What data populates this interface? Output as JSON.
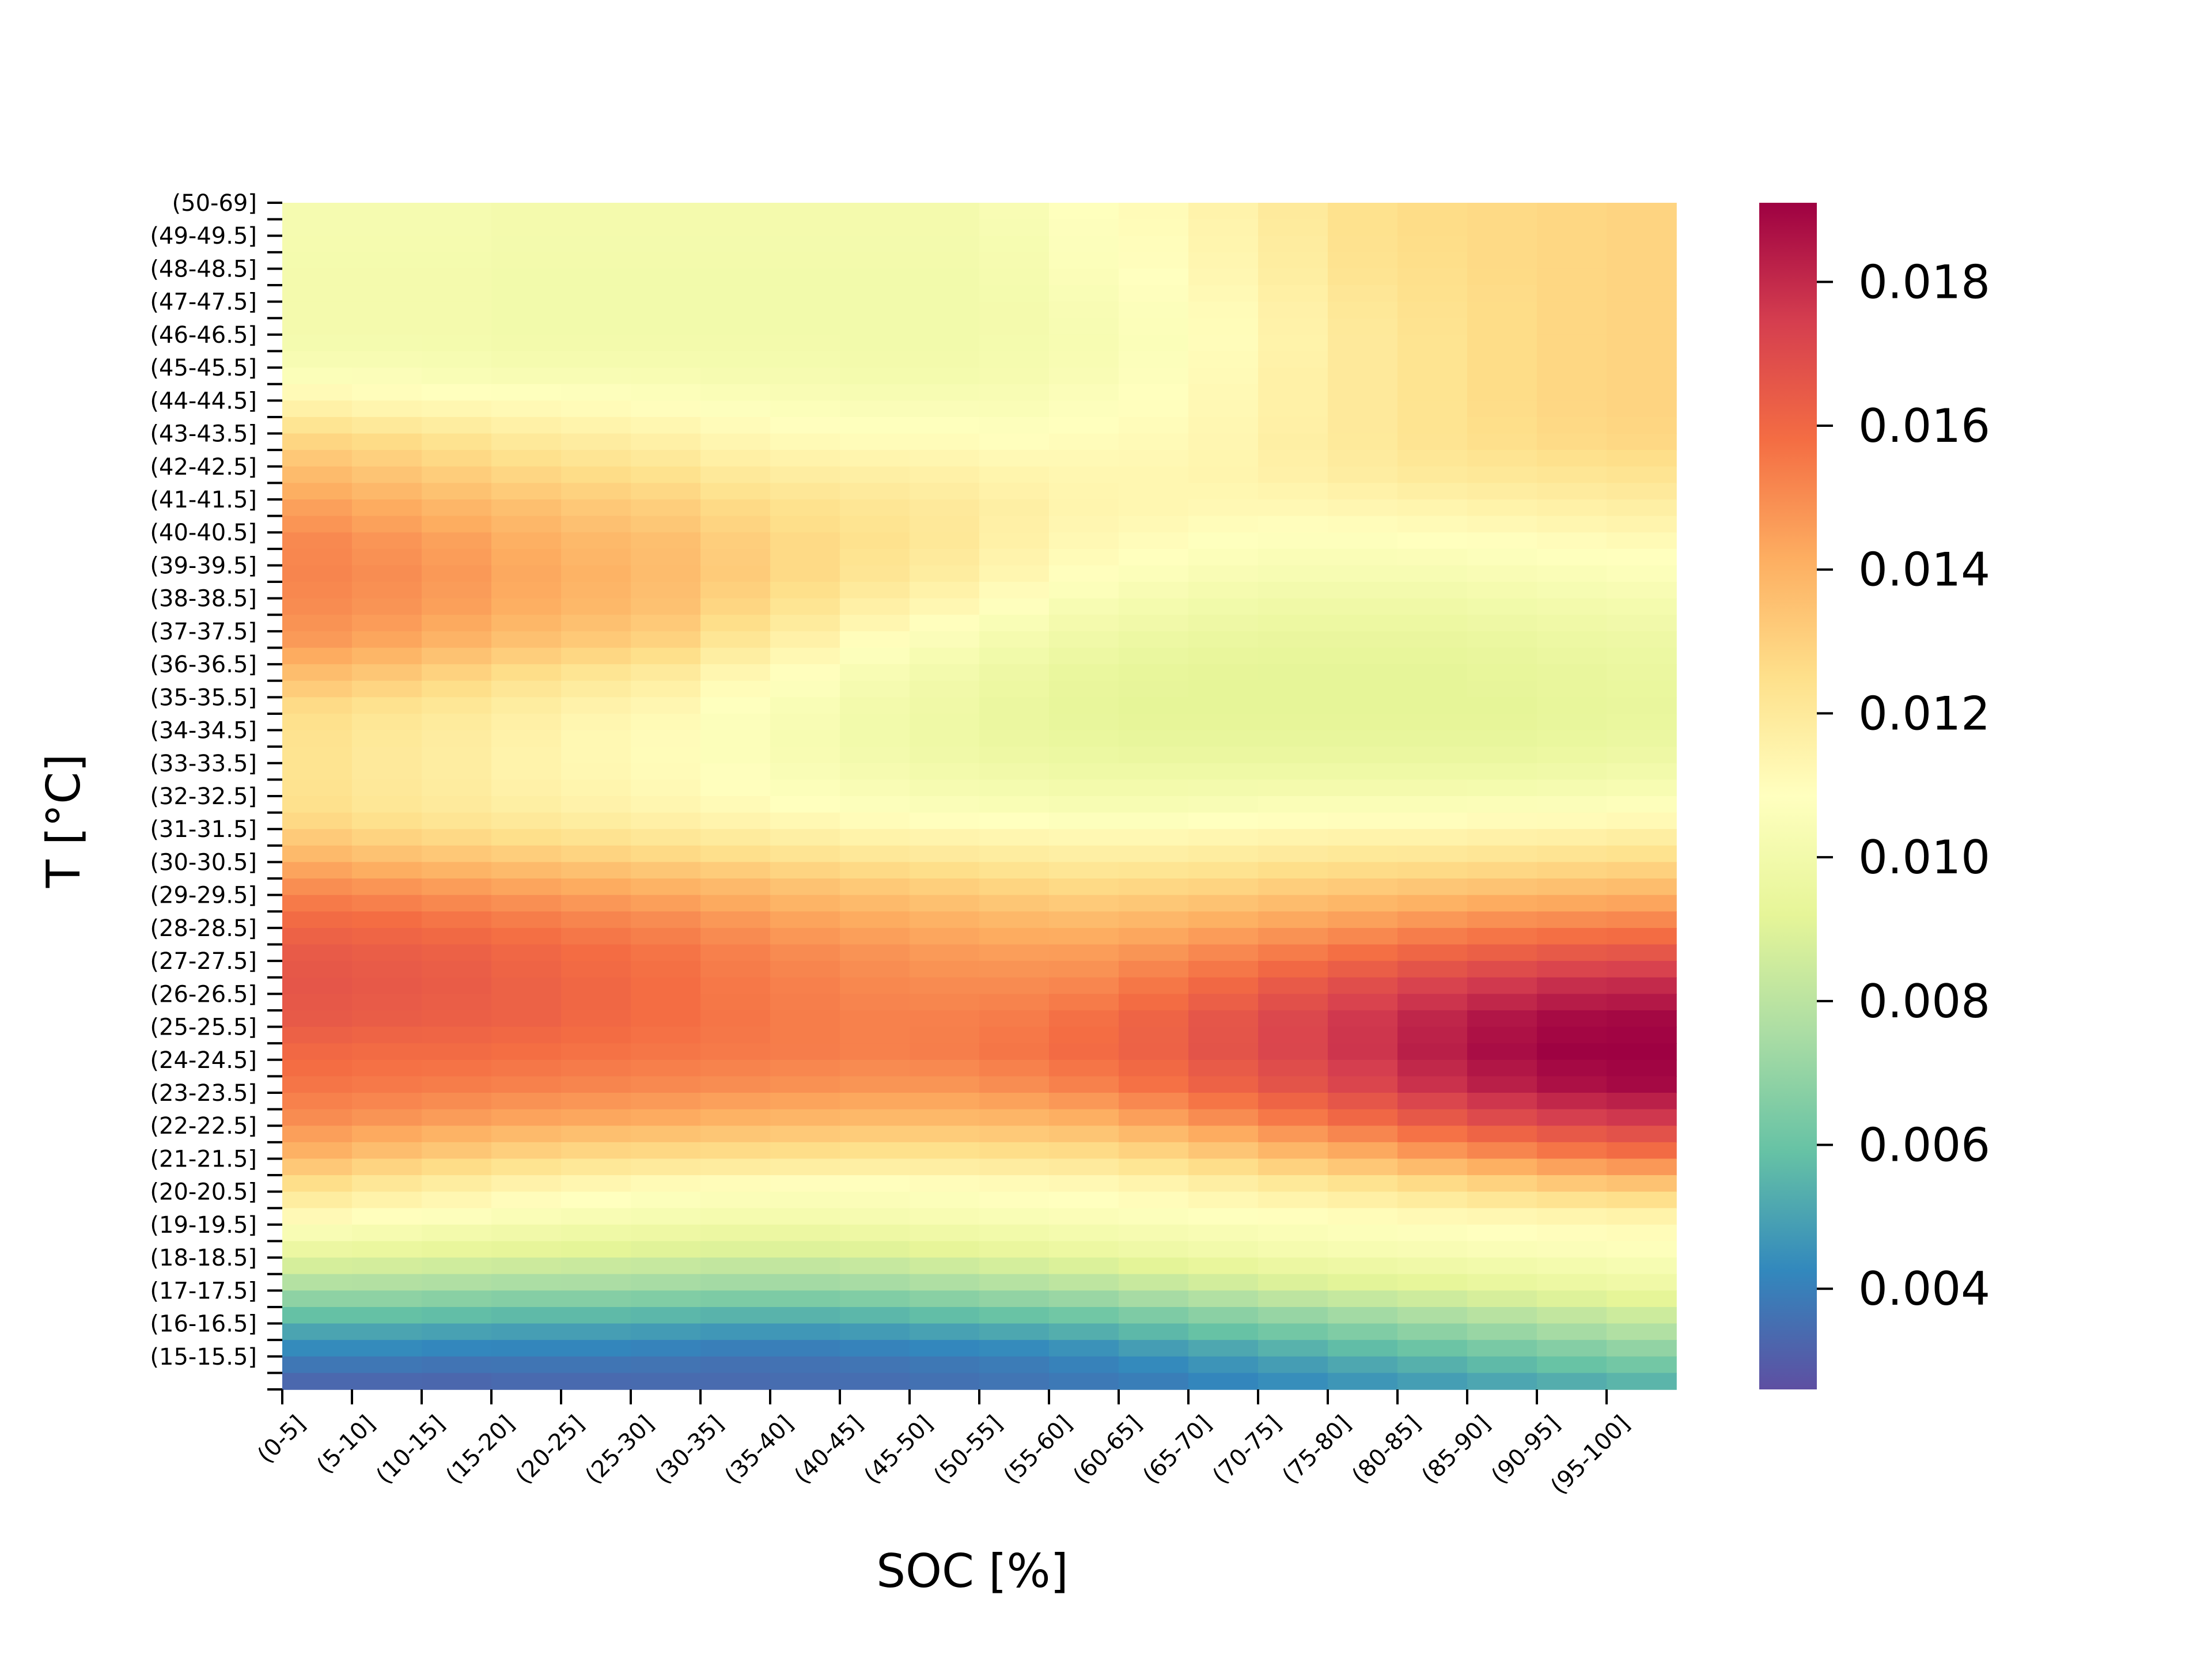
{
  "chart_data": {
    "type": "heatmap",
    "title": "",
    "xlabel": "SOC [%]",
    "ylabel": "T [°C]",
    "colormap": "Spectral_r",
    "x_categories": [
      "(0-5]",
      "(5-10]",
      "(10-15]",
      "(15-20]",
      "(20-25]",
      "(25-30]",
      "(30-35]",
      "(35-40]",
      "(40-45]",
      "(45-50]",
      "(50-55]",
      "(55-60]",
      "(60-65]",
      "(65-70]",
      "(70-75]",
      "(75-80]",
      "(80-85]",
      "(85-90]",
      "(90-95]",
      "(95-100]"
    ],
    "y_tick_labels_top_to_bottom": [
      "(50-69]",
      "(49-49.5]",
      "(48-48.5]",
      "(47-47.5]",
      "(46-46.5]",
      "(45-45.5]",
      "(44-44.5]",
      "(43-43.5]",
      "(42-42.5]",
      "(41-41.5]",
      "(40-40.5]",
      "(39-39.5]",
      "(38-38.5]",
      "(37-37.5]",
      "(36-36.5]",
      "(35-35.5]",
      "(34-34.5]",
      "(33-33.5]",
      "(32-32.5]",
      "(31-31.5]",
      "(30-30.5]",
      "(29-29.5]",
      "(28-28.5]",
      "(27-27.5]",
      "(26-26.5]",
      "(25-25.5]",
      "(24-24.5]",
      "(23-23.5]",
      "(22-22.5]",
      "(21-21.5]",
      "(20-20.5]",
      "(19-19.5]",
      "(18-18.5]",
      "(17-17.5]",
      "(16-16.5]",
      "(15-15.5]"
    ],
    "y_bins_per_label": 2,
    "colorbar": {
      "range": [
        0.0026,
        0.0191
      ],
      "ticks": [
        0.004,
        0.006,
        0.008,
        0.01,
        0.012,
        0.014,
        0.016,
        0.018
      ],
      "tick_labels": [
        "0.004",
        "0.006",
        "0.008",
        "0.010",
        "0.012",
        "0.014",
        "0.016",
        "0.018"
      ]
    },
    "column_profiles_bottom_to_top": {
      "T_centers_C": [
        15,
        16,
        17,
        18,
        19,
        20,
        21,
        22,
        23,
        24,
        25,
        26,
        27,
        28,
        29,
        30,
        31,
        32,
        33,
        34,
        35,
        36,
        37,
        38,
        39,
        40,
        41,
        42,
        43,
        44,
        45,
        46,
        47,
        48,
        49,
        50
      ],
      "columns": {
        "(0-5]": [
          0.0031,
          0.004,
          0.0055,
          0.0075,
          0.0094,
          0.011,
          0.0124,
          0.014,
          0.015,
          0.0156,
          0.016,
          0.0165,
          0.0166,
          0.0164,
          0.0158,
          0.0148,
          0.0135,
          0.0125,
          0.0123,
          0.0123,
          0.0125,
          0.0135,
          0.0146,
          0.015,
          0.0152,
          0.0151,
          0.0145,
          0.0137,
          0.0128,
          0.0115,
          0.0105,
          0.0101,
          0.0101,
          0.0101,
          0.0102,
          0.0102
        ],
        "(5-10]": [
          0.0031,
          0.004,
          0.0055,
          0.0075,
          0.0093,
          0.0108,
          0.012,
          0.0136,
          0.0148,
          0.0155,
          0.0159,
          0.0164,
          0.0165,
          0.0163,
          0.0157,
          0.0146,
          0.0132,
          0.0122,
          0.012,
          0.012,
          0.0122,
          0.0132,
          0.0143,
          0.0148,
          0.015,
          0.0148,
          0.0142,
          0.0134,
          0.0126,
          0.0113,
          0.0105,
          0.0101,
          0.0101,
          0.0101,
          0.0102,
          0.0102
        ],
        "(10-15]": [
          0.0031,
          0.0039,
          0.0054,
          0.0074,
          0.0092,
          0.0106,
          0.0117,
          0.0133,
          0.0146,
          0.0154,
          0.0159,
          0.0163,
          0.0164,
          0.0162,
          0.0155,
          0.0144,
          0.013,
          0.012,
          0.0118,
          0.0118,
          0.012,
          0.0128,
          0.0139,
          0.0145,
          0.0147,
          0.0145,
          0.0139,
          0.0131,
          0.0123,
          0.0112,
          0.0104,
          0.0101,
          0.0101,
          0.0101,
          0.0102,
          0.0102
        ],
        "(15-20]": [
          0.0032,
          0.0039,
          0.0053,
          0.0073,
          0.0091,
          0.0104,
          0.0114,
          0.013,
          0.0144,
          0.0153,
          0.0158,
          0.0162,
          0.0162,
          0.016,
          0.0153,
          0.0142,
          0.0128,
          0.0118,
          0.0115,
          0.0115,
          0.0117,
          0.0124,
          0.0135,
          0.0141,
          0.0143,
          0.0141,
          0.0136,
          0.0128,
          0.012,
          0.0111,
          0.0103,
          0.01,
          0.01,
          0.01,
          0.0101,
          0.0101
        ],
        "(20-25]": [
          0.0032,
          0.0039,
          0.0053,
          0.0073,
          0.009,
          0.0103,
          0.0112,
          0.0128,
          0.0143,
          0.0152,
          0.0157,
          0.016,
          0.016,
          0.0158,
          0.0151,
          0.014,
          0.0126,
          0.0116,
          0.0113,
          0.0112,
          0.0114,
          0.0121,
          0.0132,
          0.0138,
          0.014,
          0.0138,
          0.0133,
          0.0126,
          0.0118,
          0.011,
          0.0103,
          0.01,
          0.01,
          0.01,
          0.0101,
          0.0101
        ],
        "(25-30]": [
          0.0033,
          0.0038,
          0.0052,
          0.0072,
          0.0089,
          0.0102,
          0.011,
          0.0127,
          0.0142,
          0.0151,
          0.0156,
          0.0158,
          0.0158,
          0.0156,
          0.0149,
          0.0138,
          0.0124,
          0.0114,
          0.0111,
          0.011,
          0.0112,
          0.0118,
          0.0129,
          0.0135,
          0.0137,
          0.0136,
          0.0131,
          0.0124,
          0.0116,
          0.0109,
          0.0103,
          0.01,
          0.01,
          0.01,
          0.0101,
          0.0101
        ],
        "(30-35]": [
          0.0033,
          0.0037,
          0.0051,
          0.0071,
          0.0088,
          0.0101,
          0.0109,
          0.0126,
          0.014,
          0.015,
          0.0155,
          0.0156,
          0.0155,
          0.0153,
          0.0146,
          0.0136,
          0.0122,
          0.0112,
          0.0108,
          0.0106,
          0.0107,
          0.0112,
          0.0121,
          0.0128,
          0.0132,
          0.0131,
          0.0127,
          0.012,
          0.0113,
          0.0107,
          0.0102,
          0.01,
          0.01,
          0.01,
          0.0101,
          0.0101
        ],
        "(35-40]": [
          0.0034,
          0.0037,
          0.0051,
          0.0071,
          0.0088,
          0.0101,
          0.0108,
          0.0125,
          0.0139,
          0.0149,
          0.0154,
          0.0154,
          0.0153,
          0.015,
          0.0143,
          0.0133,
          0.012,
          0.011,
          0.0105,
          0.0103,
          0.0104,
          0.0108,
          0.0115,
          0.0122,
          0.0127,
          0.0127,
          0.0124,
          0.0118,
          0.0111,
          0.0106,
          0.0102,
          0.01,
          0.01,
          0.01,
          0.0101,
          0.0101
        ],
        "(40-45]": [
          0.0034,
          0.0038,
          0.0052,
          0.0072,
          0.0089,
          0.0102,
          0.0108,
          0.0124,
          0.0138,
          0.0148,
          0.0153,
          0.0153,
          0.0151,
          0.0148,
          0.0141,
          0.0131,
          0.0118,
          0.0108,
          0.0103,
          0.01,
          0.01,
          0.0103,
          0.0109,
          0.0116,
          0.0122,
          0.0124,
          0.0122,
          0.0117,
          0.011,
          0.0105,
          0.0101,
          0.01,
          0.01,
          0.01,
          0.0101,
          0.0101
        ],
        "(45-50]": [
          0.0035,
          0.0039,
          0.0054,
          0.0074,
          0.0091,
          0.0103,
          0.0109,
          0.0124,
          0.0138,
          0.0148,
          0.0154,
          0.0153,
          0.015,
          0.0146,
          0.0139,
          0.0129,
          0.0117,
          0.0107,
          0.0101,
          0.0098,
          0.0098,
          0.01,
          0.0105,
          0.0112,
          0.0118,
          0.0121,
          0.012,
          0.0116,
          0.011,
          0.0105,
          0.0101,
          0.01,
          0.01,
          0.01,
          0.0101,
          0.0101
        ],
        "(50-55]": [
          0.0036,
          0.004,
          0.0056,
          0.0076,
          0.0093,
          0.0104,
          0.011,
          0.0125,
          0.0139,
          0.015,
          0.0156,
          0.0154,
          0.015,
          0.0145,
          0.0137,
          0.0127,
          0.0116,
          0.0106,
          0.01,
          0.0096,
          0.0095,
          0.0097,
          0.0101,
          0.0107,
          0.0113,
          0.0116,
          0.0117,
          0.0114,
          0.0109,
          0.0105,
          0.0102,
          0.0101,
          0.0101,
          0.0102,
          0.0103,
          0.0104
        ],
        "(55-60]": [
          0.0037,
          0.0042,
          0.0058,
          0.0078,
          0.0095,
          0.0105,
          0.0111,
          0.0126,
          0.0141,
          0.0153,
          0.0159,
          0.0157,
          0.0151,
          0.0145,
          0.0136,
          0.0125,
          0.0115,
          0.0105,
          0.0099,
          0.0095,
          0.0093,
          0.0094,
          0.0098,
          0.0103,
          0.0109,
          0.0112,
          0.0114,
          0.0113,
          0.011,
          0.0107,
          0.0104,
          0.0103,
          0.0104,
          0.0106,
          0.0107,
          0.0108
        ],
        "(60-65]": [
          0.0038,
          0.0045,
          0.0061,
          0.0081,
          0.0097,
          0.0106,
          0.0113,
          0.0129,
          0.0145,
          0.0157,
          0.0162,
          0.0161,
          0.0155,
          0.0147,
          0.0137,
          0.0126,
          0.0115,
          0.0105,
          0.0099,
          0.0094,
          0.0092,
          0.0093,
          0.0096,
          0.0101,
          0.0106,
          0.011,
          0.0113,
          0.0113,
          0.0111,
          0.0109,
          0.0107,
          0.0106,
          0.0107,
          0.0109,
          0.011,
          0.0111
        ],
        "(65-70]": [
          0.004,
          0.0048,
          0.0064,
          0.0084,
          0.0099,
          0.0107,
          0.0116,
          0.0133,
          0.015,
          0.0162,
          0.0167,
          0.0166,
          0.0159,
          0.015,
          0.0139,
          0.0127,
          0.0116,
          0.0106,
          0.0099,
          0.0094,
          0.0092,
          0.0092,
          0.0095,
          0.0099,
          0.0104,
          0.0108,
          0.0112,
          0.0114,
          0.0113,
          0.0112,
          0.0111,
          0.011,
          0.0111,
          0.0113,
          0.0114,
          0.0115
        ],
        "(70-75]": [
          0.0042,
          0.0051,
          0.0067,
          0.0087,
          0.0101,
          0.0108,
          0.0119,
          0.0138,
          0.0155,
          0.0167,
          0.0172,
          0.0171,
          0.0164,
          0.0153,
          0.0141,
          0.0129,
          0.0117,
          0.0107,
          0.0099,
          0.0094,
          0.0092,
          0.0092,
          0.0094,
          0.0098,
          0.0103,
          0.0107,
          0.0112,
          0.0116,
          0.0117,
          0.0116,
          0.0116,
          0.0115,
          0.0116,
          0.0118,
          0.0119,
          0.012
        ],
        "(75-80]": [
          0.0044,
          0.0054,
          0.007,
          0.0089,
          0.0102,
          0.0109,
          0.0122,
          0.0142,
          0.016,
          0.0172,
          0.0177,
          0.0176,
          0.0168,
          0.0156,
          0.0143,
          0.013,
          0.0118,
          0.0107,
          0.0099,
          0.0094,
          0.0092,
          0.0092,
          0.0094,
          0.0098,
          0.0103,
          0.0107,
          0.0113,
          0.0118,
          0.012,
          0.012,
          0.012,
          0.012,
          0.0121,
          0.0123,
          0.0124,
          0.0124
        ],
        "(80-85]": [
          0.0046,
          0.0057,
          0.0073,
          0.0091,
          0.0103,
          0.011,
          0.0125,
          0.0147,
          0.0165,
          0.0178,
          0.0183,
          0.0181,
          0.0172,
          0.0159,
          0.0145,
          0.0131,
          0.0118,
          0.0107,
          0.0099,
          0.0094,
          0.0092,
          0.0092,
          0.0094,
          0.0098,
          0.0103,
          0.0108,
          0.0114,
          0.012,
          0.0123,
          0.0123,
          0.0123,
          0.0123,
          0.0124,
          0.0125,
          0.0126,
          0.0126
        ],
        "(85-90]": [
          0.0048,
          0.006,
          0.0076,
          0.0093,
          0.0104,
          0.0111,
          0.0128,
          0.0151,
          0.017,
          0.0183,
          0.0188,
          0.0185,
          0.0175,
          0.0161,
          0.0147,
          0.0132,
          0.0119,
          0.0108,
          0.0099,
          0.0094,
          0.0092,
          0.0093,
          0.0095,
          0.0099,
          0.0104,
          0.0109,
          0.0115,
          0.0121,
          0.0125,
          0.0126,
          0.0126,
          0.0126,
          0.0126,
          0.0127,
          0.0127,
          0.0127
        ],
        "(90-95]": [
          0.005,
          0.0063,
          0.0079,
          0.0095,
          0.0105,
          0.0112,
          0.0131,
          0.0155,
          0.0174,
          0.0187,
          0.0191,
          0.0188,
          0.0178,
          0.0163,
          0.0148,
          0.0133,
          0.012,
          0.0108,
          0.01,
          0.0095,
          0.0093,
          0.0094,
          0.0096,
          0.01,
          0.0105,
          0.011,
          0.0116,
          0.0122,
          0.0127,
          0.0128,
          0.0128,
          0.0128,
          0.0128,
          0.0128,
          0.0128,
          0.0128
        ],
        "(95-100]": [
          0.0052,
          0.0066,
          0.0082,
          0.0097,
          0.0106,
          0.0113,
          0.0133,
          0.0158,
          0.0176,
          0.0189,
          0.0191,
          0.0189,
          0.0179,
          0.0164,
          0.0149,
          0.0134,
          0.0121,
          0.0109,
          0.0101,
          0.0096,
          0.0094,
          0.0095,
          0.0097,
          0.0101,
          0.0106,
          0.0111,
          0.0117,
          0.0123,
          0.0128,
          0.0129,
          0.0129,
          0.0129,
          0.0129,
          0.0129,
          0.0129,
          0.0129
        ]
      }
    }
  }
}
